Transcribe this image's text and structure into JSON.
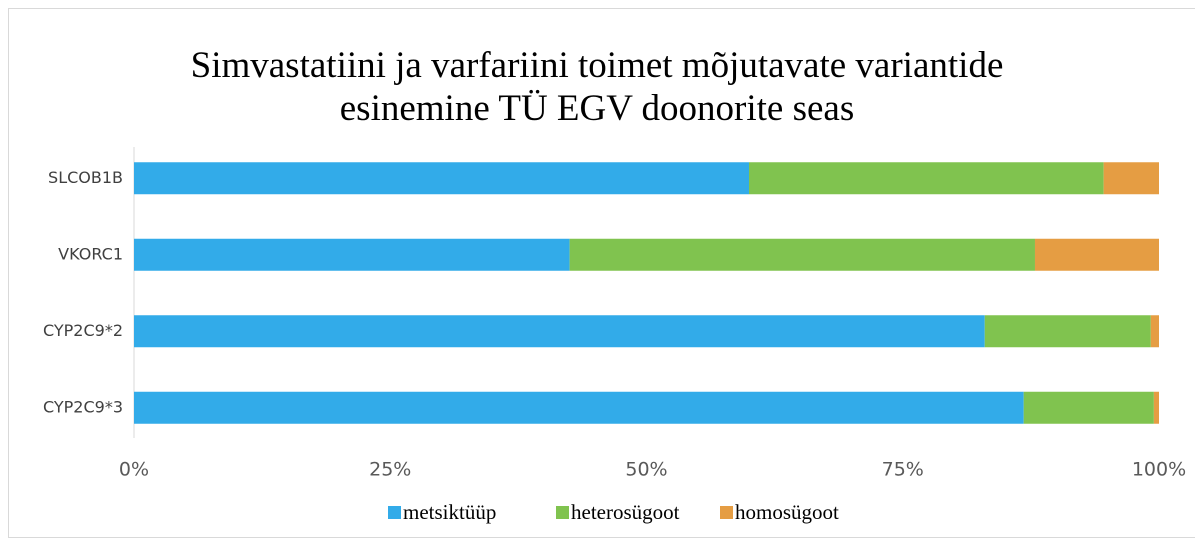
{
  "chart_data": {
    "type": "stacked_bar_horizontal",
    "title": "Simvastatiini ja varfariini toimet mõjutavate variantide esinemine TÜ EGV doonorite seas",
    "categories": [
      "SLCOB1B",
      "VKORC1",
      "CYP2C9*2",
      "CYP2C9*3"
    ],
    "series": [
      {
        "name": "metsiktüüp",
        "color": "#32abe9",
        "values": [
          60.0,
          42.5,
          83.0,
          86.8
        ]
      },
      {
        "name": "heterosügoot",
        "color": "#80c34f",
        "values": [
          34.6,
          45.4,
          16.2,
          12.7
        ]
      },
      {
        "name": "homosügoot",
        "color": "#e59d43",
        "values": [
          5.4,
          12.1,
          0.8,
          0.5
        ]
      }
    ],
    "xlim": [
      0,
      100
    ],
    "xticks": [
      {
        "value": 0,
        "label": "0%"
      },
      {
        "value": 25,
        "label": "25%"
      },
      {
        "value": 50,
        "label": "50%"
      },
      {
        "value": 75,
        "label": "75%"
      },
      {
        "value": 100,
        "label": "100%"
      }
    ],
    "legend": "bottom"
  }
}
